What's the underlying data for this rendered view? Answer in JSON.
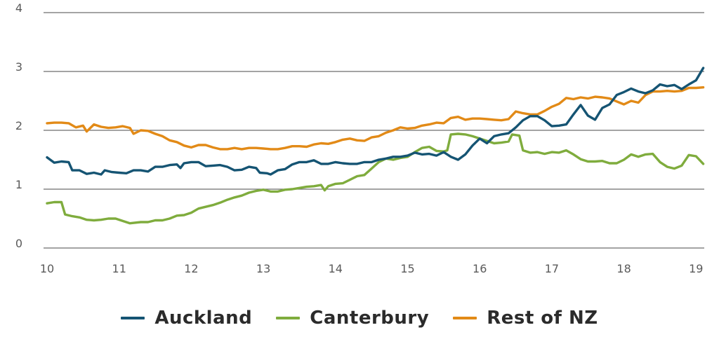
{
  "chart_data": {
    "type": "line",
    "ylim": [
      0,
      4
    ],
    "xlim": [
      10,
      19.1
    ],
    "y_ticks": [
      "0",
      "1",
      "2",
      "3",
      "4"
    ],
    "x_ticks": [
      "10",
      "11",
      "12",
      "13",
      "14",
      "15",
      "16",
      "17",
      "18",
      "19"
    ],
    "grid": true,
    "legend_position": "bottom",
    "colors": {
      "Auckland": "#155473",
      "Canterbury": "#7fac3d",
      "Rest of NZ": "#e28a17",
      "grid": "#6e6e6e"
    },
    "series": [
      {
        "name": "Auckland",
        "points": [
          [
            10,
            1.54
          ],
          [
            10.1,
            1.45
          ],
          [
            10.2,
            1.47
          ],
          [
            10.3,
            1.46
          ],
          [
            10.35,
            1.32
          ],
          [
            10.45,
            1.32
          ],
          [
            10.55,
            1.26
          ],
          [
            10.65,
            1.28
          ],
          [
            10.75,
            1.25
          ],
          [
            10.8,
            1.32
          ],
          [
            10.9,
            1.29
          ],
          [
            11,
            1.28
          ],
          [
            11.1,
            1.27
          ],
          [
            11.2,
            1.32
          ],
          [
            11.3,
            1.32
          ],
          [
            11.4,
            1.3
          ],
          [
            11.5,
            1.38
          ],
          [
            11.6,
            1.38
          ],
          [
            11.7,
            1.41
          ],
          [
            11.8,
            1.42
          ],
          [
            11.85,
            1.36
          ],
          [
            11.9,
            1.44
          ],
          [
            12,
            1.46
          ],
          [
            12.1,
            1.46
          ],
          [
            12.2,
            1.39
          ],
          [
            12.3,
            1.4
          ],
          [
            12.4,
            1.41
          ],
          [
            12.5,
            1.38
          ],
          [
            12.6,
            1.32
          ],
          [
            12.7,
            1.33
          ],
          [
            12.8,
            1.38
          ],
          [
            12.9,
            1.36
          ],
          [
            12.95,
            1.28
          ],
          [
            13.05,
            1.27
          ],
          [
            13.1,
            1.25
          ],
          [
            13.2,
            1.32
          ],
          [
            13.3,
            1.34
          ],
          [
            13.4,
            1.42
          ],
          [
            13.5,
            1.46
          ],
          [
            13.6,
            1.46
          ],
          [
            13.7,
            1.49
          ],
          [
            13.8,
            1.43
          ],
          [
            13.9,
            1.43
          ],
          [
            14,
            1.46
          ],
          [
            14.1,
            1.44
          ],
          [
            14.2,
            1.43
          ],
          [
            14.3,
            1.43
          ],
          [
            14.4,
            1.46
          ],
          [
            14.5,
            1.46
          ],
          [
            14.6,
            1.5
          ],
          [
            14.7,
            1.52
          ],
          [
            14.8,
            1.55
          ],
          [
            14.9,
            1.55
          ],
          [
            15,
            1.57
          ],
          [
            15.1,
            1.62
          ],
          [
            15.2,
            1.59
          ],
          [
            15.3,
            1.6
          ],
          [
            15.4,
            1.57
          ],
          [
            15.5,
            1.63
          ],
          [
            15.6,
            1.55
          ],
          [
            15.7,
            1.5
          ],
          [
            15.8,
            1.59
          ],
          [
            15.9,
            1.74
          ],
          [
            16,
            1.86
          ],
          [
            16.1,
            1.78
          ],
          [
            16.2,
            1.9
          ],
          [
            16.3,
            1.93
          ],
          [
            16.4,
            1.95
          ],
          [
            16.5,
            2.05
          ],
          [
            16.6,
            2.17
          ],
          [
            16.7,
            2.24
          ],
          [
            16.8,
            2.24
          ],
          [
            16.9,
            2.17
          ],
          [
            17,
            2.07
          ],
          [
            17.1,
            2.08
          ],
          [
            17.2,
            2.1
          ],
          [
            17.3,
            2.27
          ],
          [
            17.4,
            2.43
          ],
          [
            17.5,
            2.25
          ],
          [
            17.6,
            2.18
          ],
          [
            17.7,
            2.38
          ],
          [
            17.8,
            2.44
          ],
          [
            17.9,
            2.6
          ],
          [
            18,
            2.65
          ],
          [
            18.1,
            2.71
          ],
          [
            18.2,
            2.66
          ],
          [
            18.3,
            2.63
          ],
          [
            18.4,
            2.68
          ],
          [
            18.5,
            2.78
          ],
          [
            18.6,
            2.75
          ],
          [
            18.7,
            2.77
          ],
          [
            18.8,
            2.7
          ],
          [
            18.9,
            2.78
          ],
          [
            19,
            2.85
          ],
          [
            19.1,
            3.06
          ]
        ]
      },
      {
        "name": "Canterbury",
        "points": [
          [
            10,
            0.76
          ],
          [
            10.1,
            0.78
          ],
          [
            10.2,
            0.78
          ],
          [
            10.25,
            0.57
          ],
          [
            10.35,
            0.54
          ],
          [
            10.45,
            0.52
          ],
          [
            10.55,
            0.48
          ],
          [
            10.65,
            0.47
          ],
          [
            10.75,
            0.48
          ],
          [
            10.85,
            0.5
          ],
          [
            10.95,
            0.5
          ],
          [
            11.05,
            0.46
          ],
          [
            11.15,
            0.42
          ],
          [
            11.3,
            0.44
          ],
          [
            11.4,
            0.44
          ],
          [
            11.5,
            0.47
          ],
          [
            11.6,
            0.47
          ],
          [
            11.7,
            0.5
          ],
          [
            11.8,
            0.55
          ],
          [
            11.9,
            0.56
          ],
          [
            12,
            0.6
          ],
          [
            12.1,
            0.67
          ],
          [
            12.2,
            0.7
          ],
          [
            12.3,
            0.73
          ],
          [
            12.4,
            0.77
          ],
          [
            12.5,
            0.82
          ],
          [
            12.6,
            0.86
          ],
          [
            12.7,
            0.89
          ],
          [
            12.8,
            0.94
          ],
          [
            12.9,
            0.97
          ],
          [
            13,
            0.99
          ],
          [
            13.1,
            0.96
          ],
          [
            13.2,
            0.96
          ],
          [
            13.3,
            0.99
          ],
          [
            13.4,
            1.0
          ],
          [
            13.5,
            1.02
          ],
          [
            13.6,
            1.04
          ],
          [
            13.7,
            1.05
          ],
          [
            13.8,
            1.07
          ],
          [
            13.85,
            0.98
          ],
          [
            13.9,
            1.05
          ],
          [
            14,
            1.09
          ],
          [
            14.1,
            1.1
          ],
          [
            14.2,
            1.16
          ],
          [
            14.3,
            1.22
          ],
          [
            14.4,
            1.24
          ],
          [
            14.5,
            1.35
          ],
          [
            14.6,
            1.46
          ],
          [
            14.7,
            1.52
          ],
          [
            14.8,
            1.5
          ],
          [
            14.9,
            1.53
          ],
          [
            15,
            1.55
          ],
          [
            15.1,
            1.63
          ],
          [
            15.2,
            1.7
          ],
          [
            15.3,
            1.72
          ],
          [
            15.4,
            1.65
          ],
          [
            15.5,
            1.64
          ],
          [
            15.55,
            1.66
          ],
          [
            15.6,
            1.93
          ],
          [
            15.7,
            1.94
          ],
          [
            15.8,
            1.93
          ],
          [
            15.9,
            1.9
          ],
          [
            16,
            1.86
          ],
          [
            16.1,
            1.82
          ],
          [
            16.2,
            1.78
          ],
          [
            16.3,
            1.79
          ],
          [
            16.4,
            1.81
          ],
          [
            16.45,
            1.93
          ],
          [
            16.55,
            1.91
          ],
          [
            16.6,
            1.66
          ],
          [
            16.7,
            1.62
          ],
          [
            16.8,
            1.63
          ],
          [
            16.9,
            1.6
          ],
          [
            17,
            1.63
          ],
          [
            17.1,
            1.62
          ],
          [
            17.2,
            1.66
          ],
          [
            17.3,
            1.59
          ],
          [
            17.4,
            1.51
          ],
          [
            17.5,
            1.47
          ],
          [
            17.6,
            1.47
          ],
          [
            17.7,
            1.48
          ],
          [
            17.8,
            1.44
          ],
          [
            17.9,
            1.44
          ],
          [
            18,
            1.5
          ],
          [
            18.1,
            1.59
          ],
          [
            18.2,
            1.55
          ],
          [
            18.3,
            1.59
          ],
          [
            18.4,
            1.6
          ],
          [
            18.5,
            1.46
          ],
          [
            18.6,
            1.38
          ],
          [
            18.7,
            1.35
          ],
          [
            18.8,
            1.4
          ],
          [
            18.9,
            1.58
          ],
          [
            19,
            1.56
          ],
          [
            19.1,
            1.43
          ]
        ]
      },
      {
        "name": "Rest of NZ",
        "points": [
          [
            10,
            2.12
          ],
          [
            10.1,
            2.13
          ],
          [
            10.2,
            2.13
          ],
          [
            10.3,
            2.12
          ],
          [
            10.4,
            2.05
          ],
          [
            10.5,
            2.08
          ],
          [
            10.55,
            1.98
          ],
          [
            10.65,
            2.1
          ],
          [
            10.75,
            2.06
          ],
          [
            10.85,
            2.04
          ],
          [
            10.95,
            2.05
          ],
          [
            11.05,
            2.07
          ],
          [
            11.15,
            2.04
          ],
          [
            11.2,
            1.94
          ],
          [
            11.3,
            2.0
          ],
          [
            11.4,
            1.99
          ],
          [
            11.5,
            1.94
          ],
          [
            11.6,
            1.9
          ],
          [
            11.7,
            1.83
          ],
          [
            11.8,
            1.8
          ],
          [
            11.9,
            1.74
          ],
          [
            12,
            1.71
          ],
          [
            12.1,
            1.75
          ],
          [
            12.2,
            1.75
          ],
          [
            12.3,
            1.71
          ],
          [
            12.4,
            1.68
          ],
          [
            12.5,
            1.68
          ],
          [
            12.6,
            1.7
          ],
          [
            12.7,
            1.68
          ],
          [
            12.8,
            1.7
          ],
          [
            12.9,
            1.7
          ],
          [
            13,
            1.69
          ],
          [
            13.1,
            1.68
          ],
          [
            13.2,
            1.68
          ],
          [
            13.3,
            1.7
          ],
          [
            13.4,
            1.73
          ],
          [
            13.5,
            1.73
          ],
          [
            13.6,
            1.72
          ],
          [
            13.7,
            1.76
          ],
          [
            13.8,
            1.78
          ],
          [
            13.9,
            1.77
          ],
          [
            14,
            1.8
          ],
          [
            14.1,
            1.84
          ],
          [
            14.2,
            1.86
          ],
          [
            14.3,
            1.83
          ],
          [
            14.4,
            1.82
          ],
          [
            14.5,
            1.88
          ],
          [
            14.6,
            1.9
          ],
          [
            14.7,
            1.96
          ],
          [
            14.8,
            2.0
          ],
          [
            14.9,
            2.05
          ],
          [
            15,
            2.03
          ],
          [
            15.1,
            2.04
          ],
          [
            15.2,
            2.08
          ],
          [
            15.3,
            2.1
          ],
          [
            15.4,
            2.13
          ],
          [
            15.5,
            2.12
          ],
          [
            15.6,
            2.21
          ],
          [
            15.7,
            2.23
          ],
          [
            15.8,
            2.18
          ],
          [
            15.9,
            2.2
          ],
          [
            16,
            2.2
          ],
          [
            16.1,
            2.19
          ],
          [
            16.2,
            2.18
          ],
          [
            16.3,
            2.17
          ],
          [
            16.4,
            2.19
          ],
          [
            16.5,
            2.32
          ],
          [
            16.6,
            2.29
          ],
          [
            16.7,
            2.27
          ],
          [
            16.8,
            2.27
          ],
          [
            16.9,
            2.33
          ],
          [
            17,
            2.4
          ],
          [
            17.1,
            2.45
          ],
          [
            17.2,
            2.55
          ],
          [
            17.3,
            2.53
          ],
          [
            17.4,
            2.56
          ],
          [
            17.5,
            2.54
          ],
          [
            17.6,
            2.57
          ],
          [
            17.7,
            2.56
          ],
          [
            17.8,
            2.54
          ],
          [
            17.9,
            2.49
          ],
          [
            18,
            2.44
          ],
          [
            18.1,
            2.5
          ],
          [
            18.2,
            2.47
          ],
          [
            18.3,
            2.6
          ],
          [
            18.4,
            2.66
          ],
          [
            18.5,
            2.66
          ],
          [
            18.6,
            2.67
          ],
          [
            18.7,
            2.66
          ],
          [
            18.8,
            2.67
          ],
          [
            18.9,
            2.72
          ],
          [
            19,
            2.72
          ],
          [
            19.1,
            2.73
          ]
        ]
      }
    ]
  },
  "legend": {
    "items": [
      {
        "label": "Auckland",
        "color": "#155473"
      },
      {
        "label": "Canterbury",
        "color": "#7fac3d"
      },
      {
        "label": "Rest of NZ",
        "color": "#e28a17"
      }
    ]
  }
}
